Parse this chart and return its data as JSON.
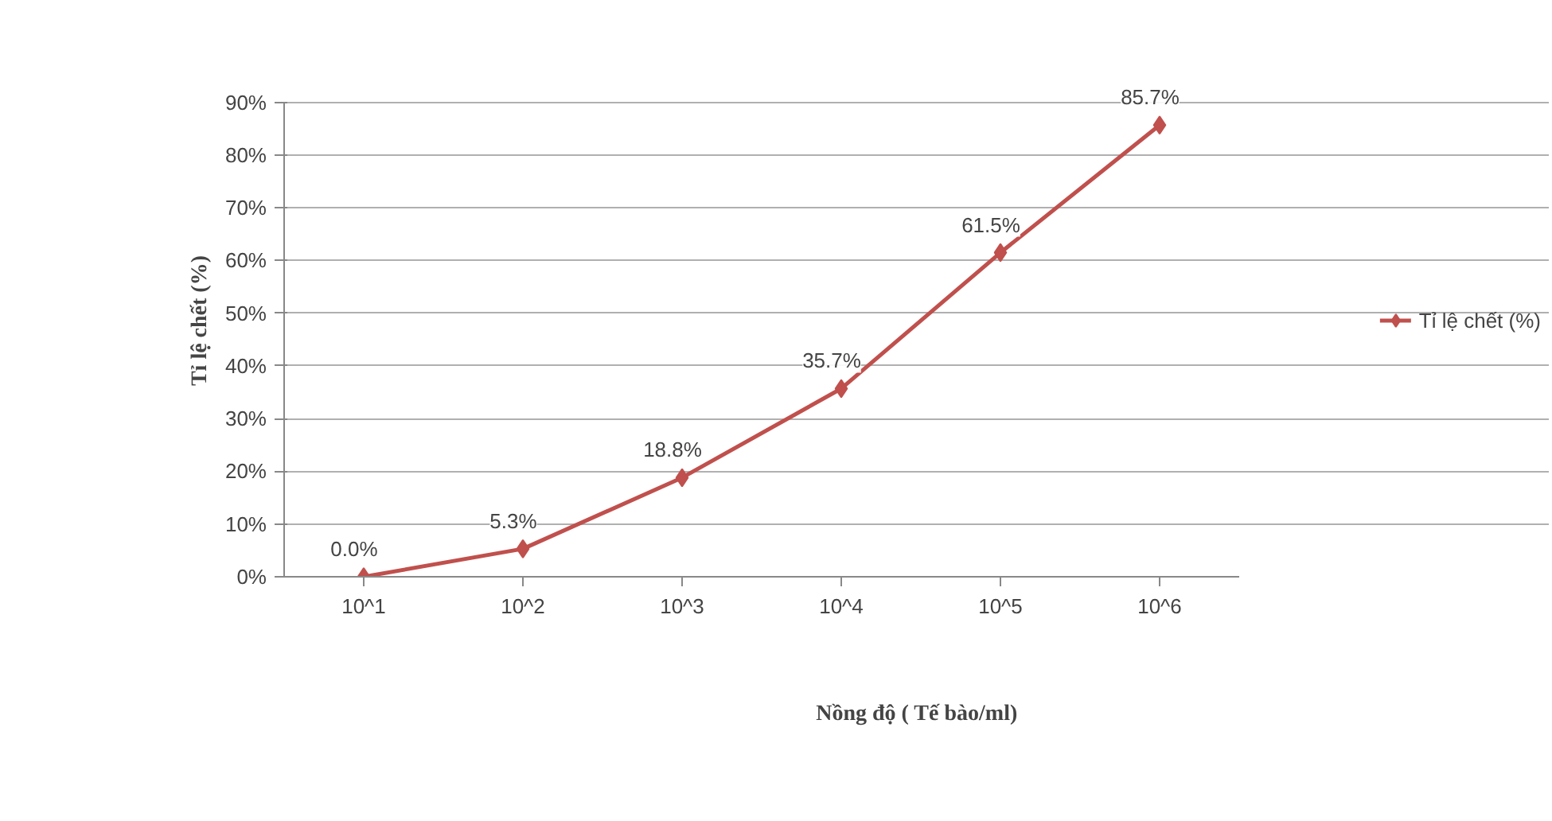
{
  "chart_data": {
    "type": "line",
    "xlabel": "Nồng độ ( Tế bào/ml)",
    "ylabel": "Tỉ lệ chết (%)",
    "categories": [
      "10^1",
      "10^2",
      "10^3",
      "10^4",
      "10^5",
      "10^6"
    ],
    "series": [
      {
        "name": "Tỉ lệ chết (%)",
        "color": "#c0504d",
        "values": [
          0.0,
          5.3,
          18.8,
          35.7,
          61.5,
          85.7
        ],
        "value_labels": [
          "0.0%",
          "5.3%",
          "18.8%",
          "35.7%",
          "61.5%",
          "85.7%"
        ]
      }
    ],
    "ylim": [
      0,
      90
    ],
    "yticks": [
      {
        "value": 0,
        "label": "0%"
      },
      {
        "value": 10,
        "label": "10%"
      },
      {
        "value": 20,
        "label": "20%"
      },
      {
        "value": 30,
        "label": "30%"
      },
      {
        "value": 40,
        "label": "40%"
      },
      {
        "value": 50,
        "label": "50%"
      },
      {
        "value": 60,
        "label": "60%"
      },
      {
        "value": 70,
        "label": "70%"
      },
      {
        "value": 80,
        "label": "80%"
      },
      {
        "value": 90,
        "label": "90%"
      }
    ],
    "grid": "y",
    "legend": "right",
    "marker": "diamond",
    "line_style": "solid"
  }
}
